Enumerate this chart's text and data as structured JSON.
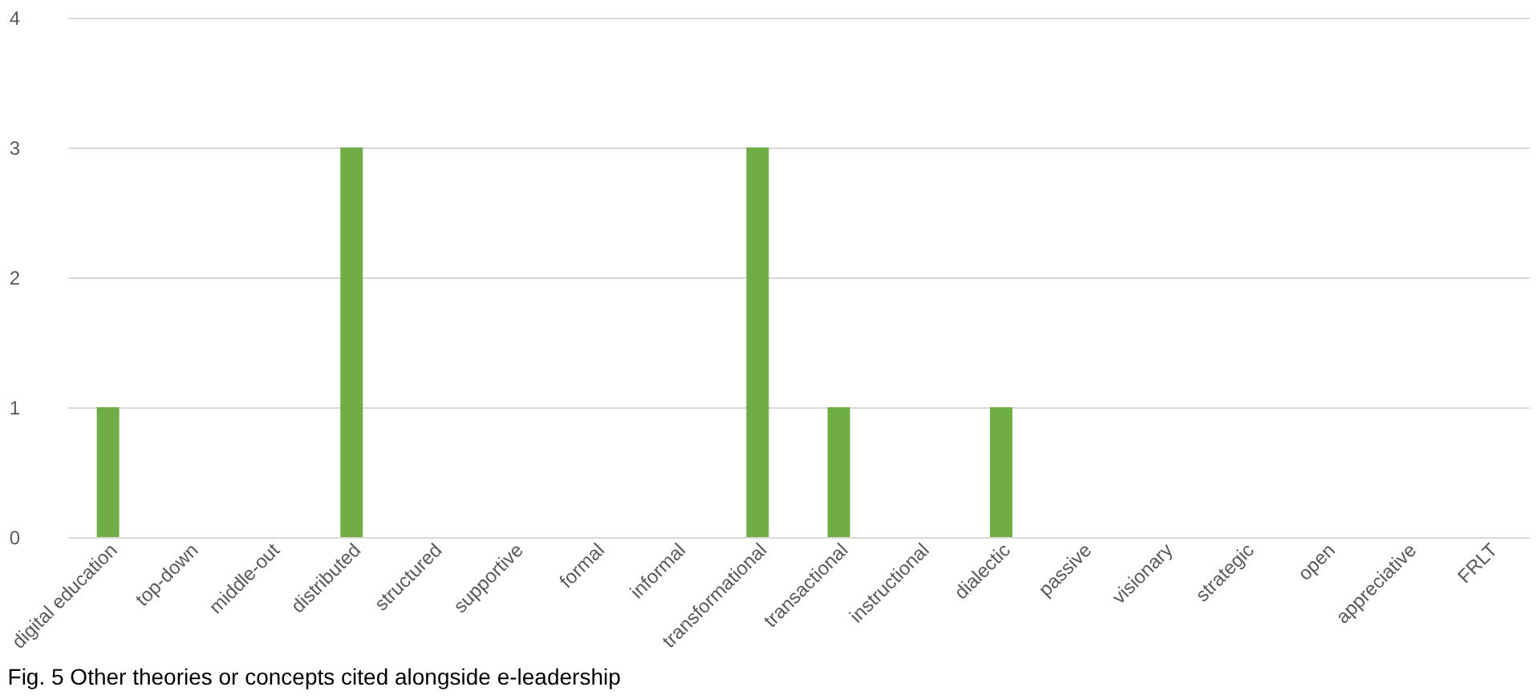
{
  "chart_data": {
    "type": "bar",
    "title": "Fig. 5 Other theories or concepts cited alongside e-leadership",
    "categories": [
      "digital education",
      "top-down",
      "middle-out",
      "distributed",
      "structured",
      "supportive",
      "formal",
      "informal",
      "transformational",
      "transactional",
      "instructional",
      "dialectic",
      "passive",
      "visionary",
      "strategic",
      "open",
      "appreciative",
      "FRLT"
    ],
    "values": [
      1,
      0,
      0,
      3,
      0,
      0,
      0,
      0,
      3,
      1,
      0,
      1,
      0,
      0,
      0,
      0,
      0,
      0
    ],
    "color": "#70ad47",
    "ylim": [
      0,
      4
    ],
    "yticks": [
      0,
      1,
      2,
      3,
      4
    ],
    "grid": "y"
  }
}
